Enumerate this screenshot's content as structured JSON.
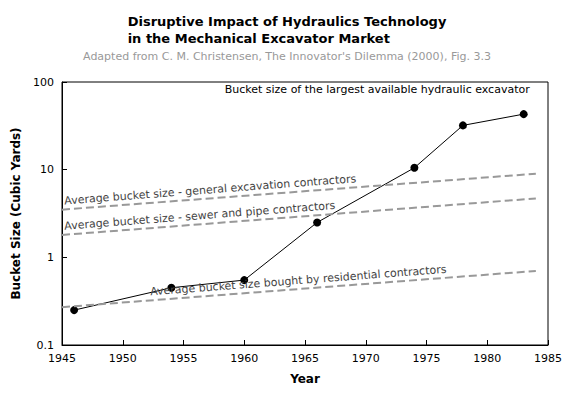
{
  "chart_data": {
    "type": "line",
    "title": "Disruptive Impact of Hydraulics Technology\nin the Mechanical Excavator Market",
    "subtitle": "Adapted from C. M. Christensen, The Innovator's Dilemma (2000), Fig. 3.3",
    "x_label": "Year",
    "y_label": "Bucket Size (Cubic Yards)",
    "log": "y",
    "grid": false,
    "xlim": [
      1945,
      1985
    ],
    "xticks": [
      1945,
      1950,
      1955,
      1960,
      1965,
      1970,
      1975,
      1980,
      1985
    ],
    "ylim": [
      0.1,
      100
    ],
    "yticks": [
      0.1,
      1,
      10,
      100
    ],
    "series": [
      {
        "name": "Bucket size of the largest available hydraulic excavator",
        "color": "#000000",
        "marker": "circle",
        "line_style": "solid",
        "x": [
          1946,
          1954,
          1960,
          1966,
          1974,
          1978,
          1983
        ],
        "values": [
          0.25,
          0.45,
          0.55,
          2.5,
          10.5,
          32,
          43
        ]
      },
      {
        "name": "Average bucket size - general excavation contractors",
        "color": "#999999",
        "marker": "arrow",
        "line_style": "dashed",
        "x": [
          1945,
          1984
        ],
        "values": [
          3.5,
          9
        ]
      },
      {
        "name": "Average bucket size - sewer and pipe contractors",
        "color": "#999999",
        "marker": "arrow",
        "line_style": "dashed",
        "x": [
          1945,
          1984
        ],
        "values": [
          1.8,
          4.7
        ]
      },
      {
        "name": "Average bucket size bought by residential contractors",
        "color": "#999999",
        "marker": "arrow",
        "line_style": "dashed",
        "x": [
          1945,
          1984
        ],
        "values": [
          0.27,
          0.7
        ]
      }
    ]
  }
}
